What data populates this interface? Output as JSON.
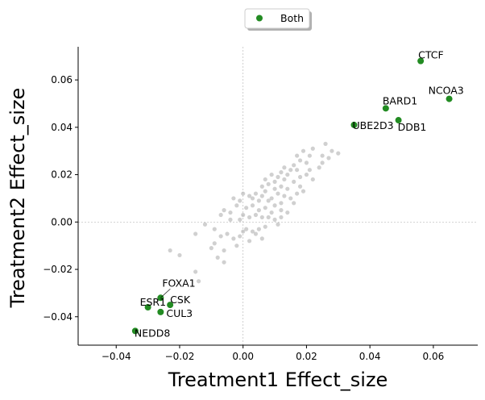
{
  "chart_data": {
    "type": "scatter",
    "xlabel": "Treatment1 Effect_size",
    "ylabel": "Treatment2 Effect_size",
    "xlim": [
      -0.052,
      0.074
    ],
    "ylim": [
      -0.052,
      0.074
    ],
    "xticks": [
      -0.04,
      -0.02,
      0.0,
      0.02,
      0.04,
      0.06
    ],
    "yticks": [
      -0.04,
      -0.02,
      0.0,
      0.02,
      0.04,
      0.06
    ],
    "xtick_labels": [
      "−0.04",
      "−0.02",
      "0.00",
      "0.02",
      "0.04",
      "0.06"
    ],
    "ytick_labels": [
      "−0.04",
      "−0.02",
      "0.00",
      "0.02",
      "0.04",
      "0.06"
    ],
    "reference_lines": {
      "x": 0,
      "y": 0
    },
    "legend": {
      "placement": "top-center-outside",
      "entries": [
        {
          "label": "Both",
          "color": "#228b22"
        }
      ]
    },
    "colors": {
      "highlight": "#228b22",
      "background": "#a9a9a9"
    },
    "series": [
      {
        "name": "Both",
        "color": "#228b22",
        "points": [
          {
            "label": "CTCF",
            "x": 0.056,
            "y": 0.068
          },
          {
            "label": "NCOA3",
            "x": 0.065,
            "y": 0.052
          },
          {
            "label": "BARD1",
            "x": 0.045,
            "y": 0.048
          },
          {
            "label": "DDB1",
            "x": 0.049,
            "y": 0.043
          },
          {
            "label": "UBE2D3",
            "x": 0.035,
            "y": 0.041
          },
          {
            "label": "FOXA1",
            "x": -0.026,
            "y": -0.032
          },
          {
            "label": "CSK",
            "x": -0.023,
            "y": -0.035
          },
          {
            "label": "ESR1",
            "x": -0.03,
            "y": -0.036
          },
          {
            "label": "CUL3",
            "x": -0.026,
            "y": -0.038
          },
          {
            "label": "NEDD8",
            "x": -0.034,
            "y": -0.046
          }
        ]
      },
      {
        "color": "#a9a9a9",
        "points": [
          [
            0.025,
            0.028
          ],
          [
            0.028,
            0.03
          ],
          [
            0.026,
            0.033
          ],
          [
            0.022,
            0.031
          ],
          [
            0.03,
            0.029
          ],
          [
            0.021,
            0.028
          ],
          [
            0.019,
            0.03
          ],
          [
            0.025,
            0.025
          ],
          [
            0.024,
            0.023
          ],
          [
            0.02,
            0.025
          ],
          [
            0.018,
            0.026
          ],
          [
            0.017,
            0.022
          ],
          [
            0.02,
            0.02
          ],
          [
            0.022,
            0.018
          ],
          [
            0.016,
            0.024
          ],
          [
            0.015,
            0.022
          ],
          [
            0.014,
            0.02
          ],
          [
            0.013,
            0.023
          ],
          [
            0.012,
            0.021
          ],
          [
            0.011,
            0.019
          ],
          [
            0.01,
            0.017
          ],
          [
            0.009,
            0.02
          ],
          [
            0.013,
            0.018
          ],
          [
            0.016,
            0.017
          ],
          [
            0.018,
            0.015
          ],
          [
            0.019,
            0.013
          ],
          [
            0.017,
            0.012
          ],
          [
            0.014,
            0.014
          ],
          [
            0.012,
            0.015
          ],
          [
            0.01,
            0.014
          ],
          [
            0.008,
            0.016
          ],
          [
            0.007,
            0.013
          ],
          [
            0.006,
            0.015
          ],
          [
            0.011,
            0.012
          ],
          [
            0.013,
            0.011
          ],
          [
            0.015,
            0.01
          ],
          [
            0.016,
            0.008
          ],
          [
            0.012,
            0.008
          ],
          [
            0.009,
            0.01
          ],
          [
            0.008,
            0.009
          ],
          [
            0.006,
            0.011
          ],
          [
            0.004,
            0.012
          ],
          [
            0.005,
            0.009
          ],
          [
            0.003,
            0.01
          ],
          [
            0.002,
            0.011
          ],
          [
            0.0,
            0.012
          ],
          [
            0.01,
            0.007
          ],
          [
            0.012,
            0.005
          ],
          [
            0.014,
            0.004
          ],
          [
            0.009,
            0.004
          ],
          [
            0.007,
            0.006
          ],
          [
            0.005,
            0.005
          ],
          [
            0.003,
            0.007
          ],
          [
            0.001,
            0.006
          ],
          [
            -0.001,
            0.009
          ],
          [
            -0.003,
            0.01
          ],
          [
            -0.002,
            0.007
          ],
          [
            -0.004,
            0.004
          ],
          [
            0.01,
            0.001
          ],
          [
            0.012,
            0.002
          ],
          [
            0.008,
            0.002
          ],
          [
            0.006,
            0.002
          ],
          [
            0.004,
            0.003
          ],
          [
            0.002,
            0.002
          ],
          [
            0.0,
            0.003
          ],
          [
            -0.001,
            0.001
          ],
          [
            -0.004,
            0.001
          ],
          [
            -0.007,
            0.003
          ],
          [
            0.011,
            -0.001
          ],
          [
            0.007,
            -0.002
          ],
          [
            0.005,
            -0.003
          ],
          [
            0.003,
            -0.004
          ],
          [
            0.001,
            -0.003
          ],
          [
            -0.001,
            -0.006
          ],
          [
            -0.003,
            -0.007
          ],
          [
            -0.005,
            -0.005
          ],
          [
            -0.002,
            -0.01
          ],
          [
            0.006,
            -0.007
          ],
          [
            0.004,
            -0.005
          ],
          [
            0.002,
            -0.008
          ],
          [
            -0.007,
            -0.006
          ],
          [
            -0.009,
            -0.003
          ],
          [
            -0.012,
            -0.001
          ],
          [
            -0.01,
            -0.011
          ],
          [
            -0.006,
            -0.012
          ],
          [
            -0.008,
            -0.015
          ],
          [
            -0.006,
            -0.017
          ],
          [
            -0.015,
            -0.005
          ],
          [
            -0.02,
            -0.014
          ],
          [
            -0.023,
            -0.012
          ],
          [
            -0.015,
            -0.021
          ],
          [
            -0.014,
            -0.025
          ],
          [
            -0.006,
            0.005
          ],
          [
            0.018,
            0.019
          ],
          [
            0.021,
            0.022
          ],
          [
            0.027,
            0.027
          ],
          [
            0.007,
            0.018
          ],
          [
            0.017,
            0.028
          ],
          [
            -0.009,
            -0.009
          ],
          [
            0.0,
            -0.004
          ]
        ]
      }
    ]
  }
}
